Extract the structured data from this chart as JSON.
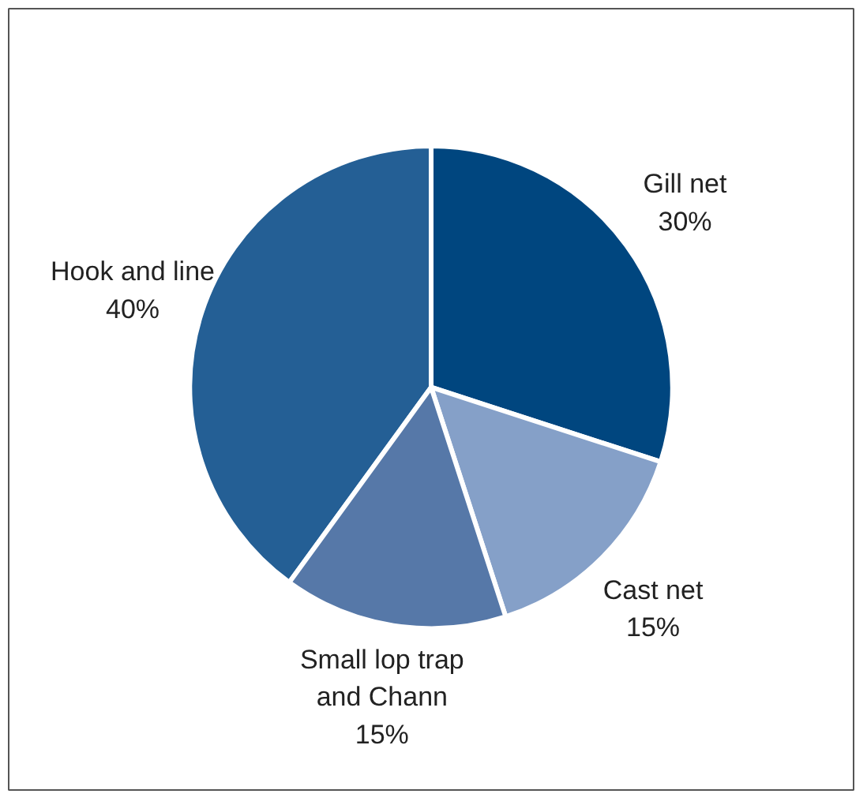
{
  "chart_data": {
    "type": "pie",
    "categories": [
      "Hook and line",
      "Gill net",
      "Cast net",
      "Small lop trap and Chann"
    ],
    "values": [
      40,
      30,
      15,
      15
    ],
    "colors": [
      "#245f95",
      "#00467f",
      "#85a0c8",
      "#5678a8"
    ],
    "value_labels": [
      "40%",
      "30%",
      "15%",
      "15%"
    ]
  }
}
